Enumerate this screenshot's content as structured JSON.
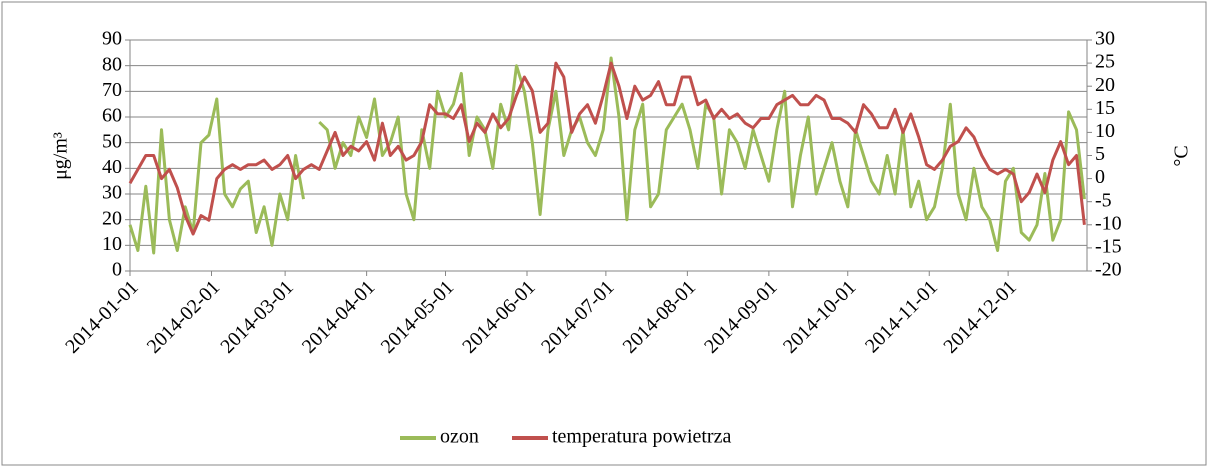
{
  "chart_data": {
    "type": "line",
    "y_label": "μg/m³",
    "y2_label": "°C",
    "x": [
      "2014-01-01",
      "2014-01-04",
      "2014-01-07",
      "2014-01-10",
      "2014-01-13",
      "2014-01-16",
      "2014-01-19",
      "2014-01-22",
      "2014-01-25",
      "2014-01-28",
      "2014-01-31",
      "2014-02-03",
      "2014-02-06",
      "2014-02-09",
      "2014-02-12",
      "2014-02-15",
      "2014-02-18",
      "2014-02-21",
      "2014-02-24",
      "2014-02-27",
      "2014-03-02",
      "2014-03-05",
      "2014-03-08",
      "2014-03-11",
      "2014-03-14",
      "2014-03-17",
      "2014-03-20",
      "2014-03-23",
      "2014-03-26",
      "2014-03-29",
      "2014-04-01",
      "2014-04-04",
      "2014-04-07",
      "2014-04-10",
      "2014-04-13",
      "2014-04-16",
      "2014-04-19",
      "2014-04-22",
      "2014-04-25",
      "2014-04-28",
      "2014-05-01",
      "2014-05-04",
      "2014-05-07",
      "2014-05-10",
      "2014-05-13",
      "2014-05-16",
      "2014-05-19",
      "2014-05-22",
      "2014-05-25",
      "2014-05-28",
      "2014-05-31",
      "2014-06-03",
      "2014-06-06",
      "2014-06-09",
      "2014-06-12",
      "2014-06-15",
      "2014-06-18",
      "2014-06-21",
      "2014-06-24",
      "2014-06-27",
      "2014-06-30",
      "2014-07-03",
      "2014-07-06",
      "2014-07-09",
      "2014-07-12",
      "2014-07-15",
      "2014-07-18",
      "2014-07-21",
      "2014-07-24",
      "2014-07-27",
      "2014-07-30",
      "2014-08-02",
      "2014-08-05",
      "2014-08-08",
      "2014-08-11",
      "2014-08-14",
      "2014-08-17",
      "2014-08-20",
      "2014-08-23",
      "2014-08-26",
      "2014-08-29",
      "2014-09-01",
      "2014-09-04",
      "2014-09-07",
      "2014-09-10",
      "2014-09-13",
      "2014-09-16",
      "2014-09-19",
      "2014-09-22",
      "2014-09-25",
      "2014-09-28",
      "2014-10-01",
      "2014-10-04",
      "2014-10-07",
      "2014-10-10",
      "2014-10-13",
      "2014-10-16",
      "2014-10-19",
      "2014-10-22",
      "2014-10-25",
      "2014-10-28",
      "2014-10-31",
      "2014-11-03",
      "2014-11-06",
      "2014-11-09",
      "2014-11-12",
      "2014-11-15",
      "2014-11-18",
      "2014-11-21",
      "2014-11-24",
      "2014-11-27",
      "2014-11-30",
      "2014-12-03",
      "2014-12-06",
      "2014-12-09",
      "2014-12-12",
      "2014-12-15",
      "2014-12-18",
      "2014-12-21",
      "2014-12-24",
      "2014-12-27",
      "2014-12-30"
    ],
    "series": [
      {
        "name": "ozon",
        "color": "#9bbb59",
        "values": [
          18,
          8,
          33,
          7,
          55,
          20,
          8,
          25,
          15,
          50,
          53,
          67,
          30,
          25,
          32,
          35,
          15,
          25,
          10,
          30,
          20,
          45,
          28,
          null,
          58,
          55,
          40,
          50,
          45,
          60,
          52,
          67,
          45,
          50,
          60,
          30,
          20,
          55,
          40,
          70,
          60,
          65,
          77,
          45,
          60,
          55,
          40,
          65,
          55,
          80,
          70,
          50,
          22,
          55,
          70,
          45,
          55,
          60,
          50,
          45,
          55,
          83,
          60,
          20,
          55,
          65,
          25,
          30,
          55,
          60,
          65,
          55,
          40,
          65,
          60,
          30,
          55,
          50,
          40,
          55,
          45,
          35,
          55,
          70,
          25,
          45,
          60,
          30,
          40,
          50,
          35,
          25,
          55,
          45,
          35,
          30,
          45,
          30,
          55,
          25,
          35,
          20,
          25,
          40,
          65,
          30,
          20,
          40,
          25,
          20,
          8,
          35,
          40,
          15,
          12,
          18,
          38,
          12,
          20,
          62,
          55,
          28
        ]
      },
      {
        "name": "temperatura powietrza",
        "color": "#c0504d",
        "axis": "y2",
        "values": [
          -1,
          2,
          5,
          5,
          0,
          2,
          -2,
          -8,
          -12,
          -8,
          -9,
          0,
          2,
          3,
          2,
          3,
          3,
          4,
          2,
          3,
          5,
          0,
          2,
          3,
          2,
          6,
          10,
          5,
          7,
          6,
          8,
          4,
          12,
          5,
          7,
          4,
          5,
          8,
          16,
          14,
          14,
          13,
          16,
          8,
          12,
          10,
          14,
          11,
          13,
          18,
          22,
          19,
          10,
          12,
          25,
          22,
          10,
          14,
          16,
          12,
          18,
          25,
          20,
          13,
          20,
          17,
          18,
          21,
          16,
          16,
          22,
          22,
          16,
          17,
          13,
          15,
          13,
          14,
          12,
          11,
          13,
          13,
          16,
          17,
          18,
          16,
          16,
          18,
          17,
          13,
          13,
          12,
          10,
          16,
          14,
          11,
          11,
          15,
          10,
          14,
          9,
          3,
          2,
          4,
          7,
          8,
          11,
          9,
          5,
          2,
          1,
          2,
          1,
          -5,
          -3,
          1,
          -3,
          4,
          8,
          3,
          5,
          -10
        ]
      }
    ],
    "xlim": [
      "2014-01-01",
      "2014-12-31"
    ],
    "xticks": [
      "2014-01-01",
      "2014-02-01",
      "2014-03-01",
      "2014-04-01",
      "2014-05-01",
      "2014-06-01",
      "2014-07-01",
      "2014-08-01",
      "2014-09-01",
      "2014-10-01",
      "2014-11-01",
      "2014-12-01"
    ],
    "ylim": [
      0,
      90
    ],
    "yticks": [
      0,
      10,
      20,
      30,
      40,
      50,
      60,
      70,
      80,
      90
    ],
    "y2lim": [
      -20,
      30
    ],
    "y2ticks": [
      -20,
      -15,
      -10,
      -5,
      0,
      5,
      10,
      15,
      20,
      25,
      30
    ],
    "grid": true,
    "legend": "bottom"
  }
}
